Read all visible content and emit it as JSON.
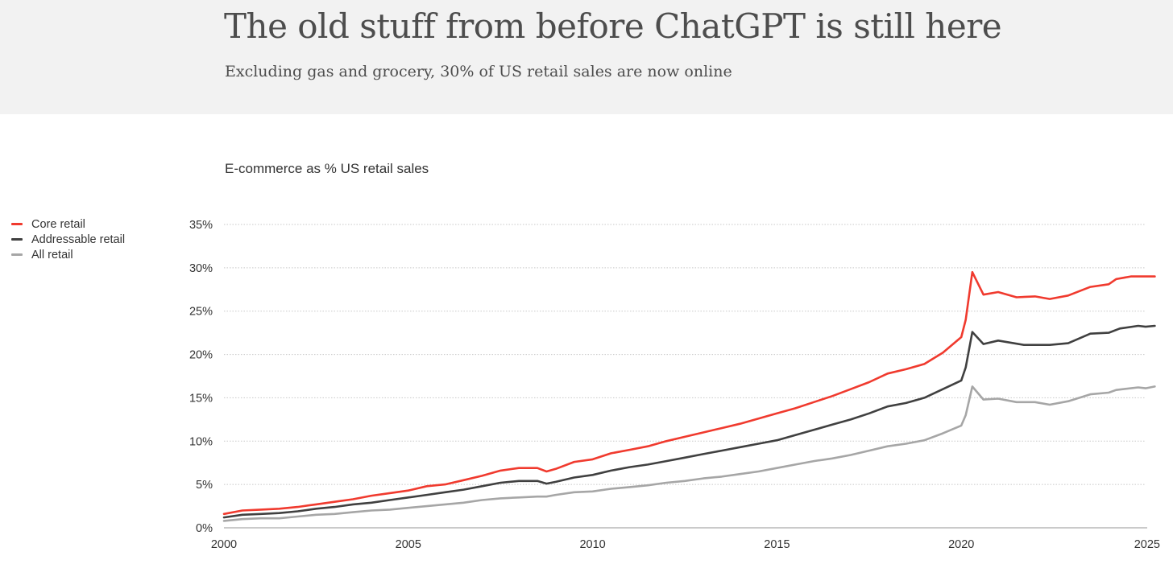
{
  "header": {
    "title": "The old stuff from before ChatGPT is still here",
    "subtitle": "Excluding gas and grocery, 30% of US retail sales are now online"
  },
  "chart_data": {
    "type": "line",
    "title": "E-commerce as % US retail sales",
    "xlabel": "",
    "ylabel": "",
    "xlim": [
      2000,
      2025.3
    ],
    "ylim": [
      0,
      35
    ],
    "xticks": [
      "2000",
      "2005",
      "2010",
      "2015",
      "2020",
      "2025"
    ],
    "yticks": [
      "0%",
      "5%",
      "10%",
      "15%",
      "20%",
      "25%",
      "30%",
      "35%"
    ],
    "grid": true,
    "legend_position": "left",
    "series": [
      {
        "name": "Core retail",
        "color": "#f03a2e",
        "points": [
          [
            2000,
            1.6
          ],
          [
            2000.5,
            2.0
          ],
          [
            2001,
            2.1
          ],
          [
            2001.5,
            2.2
          ],
          [
            2002,
            2.4
          ],
          [
            2002.5,
            2.7
          ],
          [
            2003,
            3.0
          ],
          [
            2003.5,
            3.3
          ],
          [
            2004,
            3.7
          ],
          [
            2004.5,
            4.0
          ],
          [
            2005,
            4.3
          ],
          [
            2005.5,
            4.8
          ],
          [
            2006,
            5.0
          ],
          [
            2006.5,
            5.5
          ],
          [
            2007,
            6.0
          ],
          [
            2007.5,
            6.6
          ],
          [
            2008,
            6.9
          ],
          [
            2008.5,
            6.9
          ],
          [
            2008.75,
            6.5
          ],
          [
            2009,
            6.8
          ],
          [
            2009.5,
            7.6
          ],
          [
            2010,
            7.9
          ],
          [
            2010.5,
            8.6
          ],
          [
            2011,
            9.0
          ],
          [
            2011.5,
            9.4
          ],
          [
            2012,
            10.0
          ],
          [
            2012.5,
            10.5
          ],
          [
            2013,
            11.0
          ],
          [
            2013.5,
            11.5
          ],
          [
            2014,
            12.0
          ],
          [
            2014.5,
            12.6
          ],
          [
            2015,
            13.2
          ],
          [
            2015.5,
            13.8
          ],
          [
            2016,
            14.5
          ],
          [
            2016.5,
            15.2
          ],
          [
            2017,
            16.0
          ],
          [
            2017.5,
            16.8
          ],
          [
            2018,
            17.8
          ],
          [
            2018.5,
            18.3
          ],
          [
            2019,
            18.9
          ],
          [
            2019.5,
            20.2
          ],
          [
            2020,
            22.0
          ],
          [
            2020.12,
            24.0
          ],
          [
            2020.3,
            29.5
          ],
          [
            2020.6,
            26.9
          ],
          [
            2021,
            27.2
          ],
          [
            2021.5,
            26.6
          ],
          [
            2022,
            26.7
          ],
          [
            2022.4,
            26.4
          ],
          [
            2022.9,
            26.8
          ],
          [
            2023.5,
            27.8
          ],
          [
            2024,
            28.1
          ],
          [
            2024.2,
            28.7
          ],
          [
            2024.6,
            29.0
          ],
          [
            2025,
            29.0
          ],
          [
            2025.25,
            29.0
          ]
        ]
      },
      {
        "name": "Addressable retail",
        "color": "#404040",
        "points": [
          [
            2000,
            1.2
          ],
          [
            2000.5,
            1.5
          ],
          [
            2001,
            1.6
          ],
          [
            2001.5,
            1.7
          ],
          [
            2002,
            1.9
          ],
          [
            2002.5,
            2.2
          ],
          [
            2003,
            2.4
          ],
          [
            2003.5,
            2.7
          ],
          [
            2004,
            2.9
          ],
          [
            2004.5,
            3.2
          ],
          [
            2005,
            3.5
          ],
          [
            2005.5,
            3.8
          ],
          [
            2006,
            4.1
          ],
          [
            2006.5,
            4.4
          ],
          [
            2007,
            4.8
          ],
          [
            2007.5,
            5.2
          ],
          [
            2008,
            5.4
          ],
          [
            2008.5,
            5.4
          ],
          [
            2008.75,
            5.1
          ],
          [
            2009,
            5.3
          ],
          [
            2009.5,
            5.8
          ],
          [
            2010,
            6.1
          ],
          [
            2010.5,
            6.6
          ],
          [
            2011,
            7.0
          ],
          [
            2011.5,
            7.3
          ],
          [
            2012,
            7.7
          ],
          [
            2012.5,
            8.1
          ],
          [
            2013,
            8.5
          ],
          [
            2013.5,
            8.9
          ],
          [
            2014,
            9.3
          ],
          [
            2014.5,
            9.7
          ],
          [
            2015,
            10.1
          ],
          [
            2015.5,
            10.7
          ],
          [
            2016,
            11.3
          ],
          [
            2016.5,
            11.9
          ],
          [
            2017,
            12.5
          ],
          [
            2017.5,
            13.2
          ],
          [
            2018,
            14.0
          ],
          [
            2018.5,
            14.4
          ],
          [
            2019,
            15.0
          ],
          [
            2019.5,
            16.0
          ],
          [
            2020,
            17.0
          ],
          [
            2020.12,
            18.5
          ],
          [
            2020.3,
            22.6
          ],
          [
            2020.6,
            21.2
          ],
          [
            2021,
            21.6
          ],
          [
            2021.7,
            21.1
          ],
          [
            2022.4,
            21.1
          ],
          [
            2022.9,
            21.3
          ],
          [
            2023.5,
            22.4
          ],
          [
            2024,
            22.5
          ],
          [
            2024.3,
            23.0
          ],
          [
            2024.8,
            23.3
          ],
          [
            2025,
            23.2
          ],
          [
            2025.25,
            23.3
          ]
        ]
      },
      {
        "name": "All retail",
        "color": "#a6a6a6",
        "points": [
          [
            2000,
            0.8
          ],
          [
            2000.5,
            1.0
          ],
          [
            2001,
            1.1
          ],
          [
            2001.5,
            1.1
          ],
          [
            2002,
            1.3
          ],
          [
            2002.5,
            1.5
          ],
          [
            2003,
            1.6
          ],
          [
            2003.5,
            1.8
          ],
          [
            2004,
            2.0
          ],
          [
            2004.5,
            2.1
          ],
          [
            2005,
            2.3
          ],
          [
            2005.5,
            2.5
          ],
          [
            2006,
            2.7
          ],
          [
            2006.5,
            2.9
          ],
          [
            2007,
            3.2
          ],
          [
            2007.5,
            3.4
          ],
          [
            2008,
            3.5
          ],
          [
            2008.5,
            3.6
          ],
          [
            2008.75,
            3.6
          ],
          [
            2009,
            3.8
          ],
          [
            2009.5,
            4.1
          ],
          [
            2010,
            4.2
          ],
          [
            2010.5,
            4.5
          ],
          [
            2011,
            4.7
          ],
          [
            2011.5,
            4.9
          ],
          [
            2012,
            5.2
          ],
          [
            2012.5,
            5.4
          ],
          [
            2013,
            5.7
          ],
          [
            2013.5,
            5.9
          ],
          [
            2014,
            6.2
          ],
          [
            2014.5,
            6.5
          ],
          [
            2015,
            6.9
          ],
          [
            2015.5,
            7.3
          ],
          [
            2016,
            7.7
          ],
          [
            2016.5,
            8.0
          ],
          [
            2017,
            8.4
          ],
          [
            2017.5,
            8.9
          ],
          [
            2018,
            9.4
          ],
          [
            2018.5,
            9.7
          ],
          [
            2019,
            10.1
          ],
          [
            2019.5,
            10.9
          ],
          [
            2020,
            11.8
          ],
          [
            2020.12,
            13.0
          ],
          [
            2020.3,
            16.3
          ],
          [
            2020.6,
            14.8
          ],
          [
            2021,
            14.9
          ],
          [
            2021.5,
            14.5
          ],
          [
            2022,
            14.5
          ],
          [
            2022.4,
            14.2
          ],
          [
            2022.9,
            14.6
          ],
          [
            2023.5,
            15.4
          ],
          [
            2024,
            15.6
          ],
          [
            2024.2,
            15.9
          ],
          [
            2024.8,
            16.2
          ],
          [
            2025,
            16.1
          ],
          [
            2025.25,
            16.3
          ]
        ]
      }
    ]
  }
}
